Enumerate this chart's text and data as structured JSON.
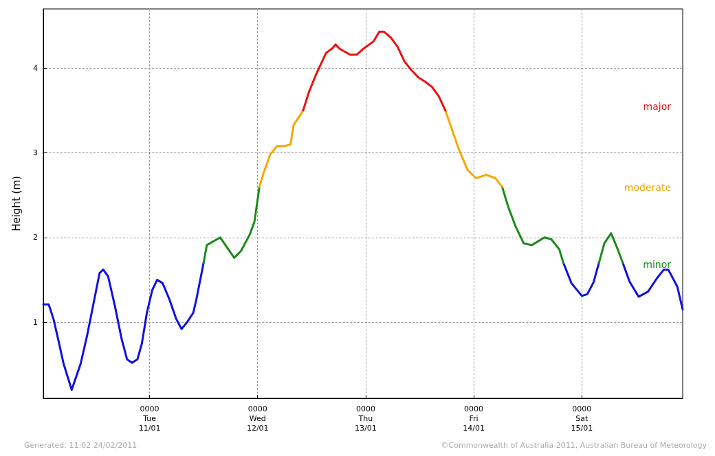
{
  "chart_data": {
    "type": "line",
    "ylabel": "Height (m)",
    "xlim": [
      "2011-01-10T00:24",
      "2011-01-15T22:24"
    ],
    "ylim": [
      0.1,
      4.7
    ],
    "xticks": [
      {
        "value": "2011-01-11",
        "label": "0000\nTue\n11/01"
      },
      {
        "value": "2011-01-12",
        "label": "0000\nWed\n12/01"
      },
      {
        "value": "2011-01-13",
        "label": "0000\nThu\n13/01"
      },
      {
        "value": "2011-01-14",
        "label": "0000\nFri\n14/01"
      },
      {
        "value": "2011-01-15",
        "label": "0000\nSat\n15/01"
      }
    ],
    "yticks": [
      1,
      2,
      3,
      4
    ],
    "grid": true,
    "marker": "none",
    "line_style": "solid",
    "series": [
      {
        "color": "#1010e0",
        "x": [
          "2011-01-10T00:24",
          "2011-01-10T01:36",
          "2011-01-10T02:42",
          "2011-01-10T03:54",
          "2011-01-10T04:54",
          "2011-01-10T06:42",
          "2011-01-10T08:42",
          "2011-01-10T10:12",
          "2011-01-10T11:42",
          "2011-01-10T12:54",
          "2011-01-10T13:42",
          "2011-01-10T14:48",
          "2011-01-10T16:18",
          "2011-01-10T17:48",
          "2011-01-10T19:00",
          "2011-01-10T20:06",
          "2011-01-10T21:18",
          "2011-01-10T22:18",
          "2011-01-10T23:24",
          "2011-01-11T00:36",
          "2011-01-11T01:42",
          "2011-01-11T02:54",
          "2011-01-11T04:24",
          "2011-01-11T05:54",
          "2011-01-11T07:06",
          "2011-01-11T08:12",
          "2011-01-11T09:42",
          "2011-01-11T10:24",
          "2011-01-11T12:00",
          "2011-01-13T02:00",
          "2011-01-14T19:54",
          "2011-01-14T21:42",
          "2011-01-15T00:00",
          "2011-01-15T01:12",
          "2011-01-15T02:36",
          "2011-01-15T03:48",
          "2011-01-15T06:00",
          "2011-01-15T09:06",
          "2011-01-15T10:36",
          "2011-01-15T12:36",
          "2011-01-15T14:42",
          "2011-01-15T16:42",
          "2011-01-15T18:12",
          "2011-01-15T19:12",
          "2011-01-15T21:12",
          "2011-01-15T22:24"
        ],
        "values": [
          1.21,
          1.21,
          1.03,
          0.75,
          0.51,
          0.2,
          0.51,
          0.86,
          1.26,
          1.58,
          1.62,
          1.54,
          1.19,
          0.8,
          0.56,
          0.52,
          0.56,
          0.75,
          1.11,
          1.38,
          1.5,
          1.46,
          1.27,
          1.04,
          0.92,
          0.99,
          1.11,
          1.27,
          1.7,
          null,
          1.7,
          1.46,
          1.31,
          1.33,
          1.47,
          1.7,
          null,
          1.7,
          1.48,
          1.3,
          1.36,
          1.52,
          1.62,
          1.62,
          1.42,
          1.15
        ]
      },
      {
        "color": "#1a8a1a",
        "x": [
          "2011-01-11T12:00",
          "2011-01-11T12:42",
          "2011-01-11T15:42",
          "2011-01-11T18:48",
          "2011-01-11T20:18",
          "2011-01-11T22:18",
          "2011-01-11T23:18",
          "2011-01-12T00:24",
          "2011-01-13T02:00",
          "2011-01-14T06:18",
          "2011-01-14T07:36",
          "2011-01-14T09:18",
          "2011-01-14T11:06",
          "2011-01-14T12:54",
          "2011-01-14T15:42",
          "2011-01-14T17:12",
          "2011-01-14T19:00",
          "2011-01-14T19:54",
          "2011-01-15T00:00",
          "2011-01-15T03:48",
          "2011-01-15T05:00",
          "2011-01-15T06:30",
          "2011-01-15T07:54",
          "2011-01-15T09:06"
        ],
        "values": [
          1.7,
          1.91,
          2.0,
          1.76,
          1.84,
          2.04,
          2.19,
          2.6,
          null,
          2.6,
          2.37,
          2.13,
          1.93,
          1.91,
          2.0,
          1.98,
          1.86,
          1.7,
          null,
          1.7,
          1.93,
          2.05,
          1.87,
          1.7
        ]
      },
      {
        "color": "#f5a800",
        "x": [
          "2011-01-12T00:24",
          "2011-01-12T01:18",
          "2011-01-12T02:48",
          "2011-01-12T04:18",
          "2011-01-12T06:06",
          "2011-01-12T07:18",
          "2011-01-12T08:00",
          "2011-01-12T09:30",
          "2011-01-12T10:06",
          "2011-01-13T02:00",
          "2011-01-13T17:42",
          "2011-01-13T19:12",
          "2011-01-13T20:42",
          "2011-01-13T22:36",
          "2011-01-14T00:30",
          "2011-01-14T02:48",
          "2011-01-14T04:48",
          "2011-01-14T06:18"
        ],
        "values": [
          2.6,
          2.76,
          2.98,
          3.08,
          3.08,
          3.1,
          3.33,
          3.45,
          3.5,
          null,
          3.5,
          3.27,
          3.04,
          2.8,
          2.7,
          2.74,
          2.7,
          2.6
        ]
      },
      {
        "color": "#ee1111",
        "x": [
          "2011-01-12T10:06",
          "2011-01-12T11:24",
          "2011-01-12T13:06",
          "2011-01-12T15:12",
          "2011-01-12T16:42",
          "2011-01-12T17:18",
          "2011-01-12T18:12",
          "2011-01-12T20:30",
          "2011-01-12T22:00",
          "2011-01-12T23:30",
          "2011-01-13T01:48",
          "2011-01-13T03:00",
          "2011-01-13T04:06",
          "2011-01-13T05:36",
          "2011-01-13T07:06",
          "2011-01-13T08:36",
          "2011-01-13T10:06",
          "2011-01-13T11:42",
          "2011-01-13T13:12",
          "2011-01-13T14:42",
          "2011-01-13T16:12",
          "2011-01-13T17:42"
        ],
        "values": [
          3.5,
          3.72,
          3.94,
          4.18,
          4.24,
          4.28,
          4.23,
          4.16,
          4.16,
          4.23,
          4.32,
          4.43,
          4.43,
          4.36,
          4.25,
          4.08,
          3.98,
          3.89,
          3.84,
          3.78,
          3.67,
          3.5
        ]
      }
    ],
    "annotations": [
      "major",
      "moderate",
      "minor",
      "Generated: 11:02 24/02/2011",
      "©Commonwealth of Australia 2011, Australian Bureau of Meteorology"
    ]
  }
}
